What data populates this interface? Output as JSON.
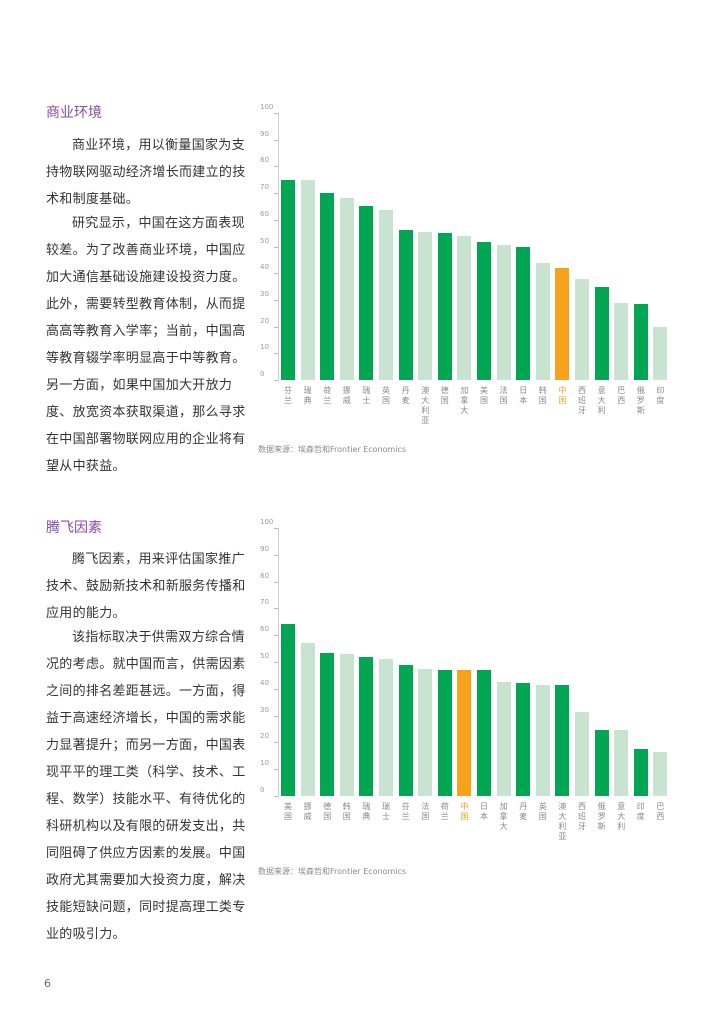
{
  "page_number": "6",
  "sections": [
    {
      "title": "商业环境",
      "paragraphs": [
        "商业环境，用以衡量国家为支持物联网驱动经济增长而建立的技术和制度基础。",
        "研究显示，中国在这方面表现较差。为了改善商业环境，中国应加大通信基础设施建设投资力度。此外，需要转型教育体制，从而提高高等教育入学率；当前，中国高等教育辍学率明显高于中等教育。另一方面，如果中国加大开放力度、放宽资本获取渠道，那么寻求在中国部署物联网应用的企业将有望从中获益。"
      ],
      "source": "数据来源：埃森哲和Frontier Economics"
    },
    {
      "title": "腾飞因素",
      "paragraphs": [
        "腾飞因素，用来评估国家推广技术、鼓励新技术和新服务传播和应用的能力。",
        "该指标取决于供需双方综合情况的考虑。就中国而言，供需因素之间的排名差距甚远。一方面，得益于高速经济增长，中国的需求能力显著提升；而另一方面，中国表现平平的理工类（科学、技术、工程、数学）技能水平、有待优化的科研机构以及有限的研发支出，共同阻碍了供应方因素的发展。中国政府尤其需要加大投资力度，解决技能短缺问题，同时提高理工类专业的吸引力。"
      ],
      "source": "数据来源：埃森哲和Frontier Economics"
    }
  ],
  "colors": {
    "dark_green": "#00a651",
    "light_green": "#c8e3d0",
    "highlight_orange": "#f7a21b",
    "title_purple": "#8b4aa6"
  },
  "chart_data": [
    {
      "type": "bar",
      "title": "商业环境",
      "xlabel": "",
      "ylabel": "",
      "ylim": [
        0,
        100
      ],
      "yticks": [
        0,
        10,
        20,
        30,
        40,
        50,
        60,
        70,
        80,
        90,
        100
      ],
      "grid": false,
      "categories": [
        "芬兰",
        "瑞典",
        "荷兰",
        "挪威",
        "瑞士",
        "英国",
        "丹麦",
        "澳大利亚",
        "德国",
        "加拿大",
        "美国",
        "法国",
        "日本",
        "韩国",
        "中国",
        "西班牙",
        "意大利",
        "巴西",
        "俄罗斯",
        "印度"
      ],
      "values": [
        75,
        75,
        70,
        68,
        65,
        63.5,
        56,
        55.5,
        55,
        54,
        51.5,
        50.5,
        50,
        44,
        42,
        38,
        35,
        29,
        28.5,
        20
      ],
      "highlight": "中国",
      "source": "数据来源：埃森哲和Frontier Economics"
    },
    {
      "type": "bar",
      "title": "腾飞因素",
      "xlabel": "",
      "ylabel": "",
      "ylim": [
        0,
        100
      ],
      "yticks": [
        0,
        10,
        20,
        30,
        40,
        50,
        60,
        70,
        80,
        90,
        100
      ],
      "grid": false,
      "categories": [
        "美国",
        "挪威",
        "德国",
        "韩国",
        "瑞典",
        "瑞士",
        "芬兰",
        "法国",
        "荷兰",
        "中国",
        "日本",
        "加拿大",
        "丹麦",
        "英国",
        "澳大利亚",
        "西班牙",
        "俄罗斯",
        "意大利",
        "印度",
        "巴西"
      ],
      "values": [
        64,
        57,
        53.5,
        53,
        52,
        51,
        49,
        47.5,
        47,
        47,
        47,
        42.5,
        42,
        41.5,
        41.5,
        31.5,
        24.5,
        24.5,
        17.5,
        16.5
      ],
      "highlight": "中国",
      "source": "数据来源：埃森哲和Frontier Economics"
    }
  ]
}
